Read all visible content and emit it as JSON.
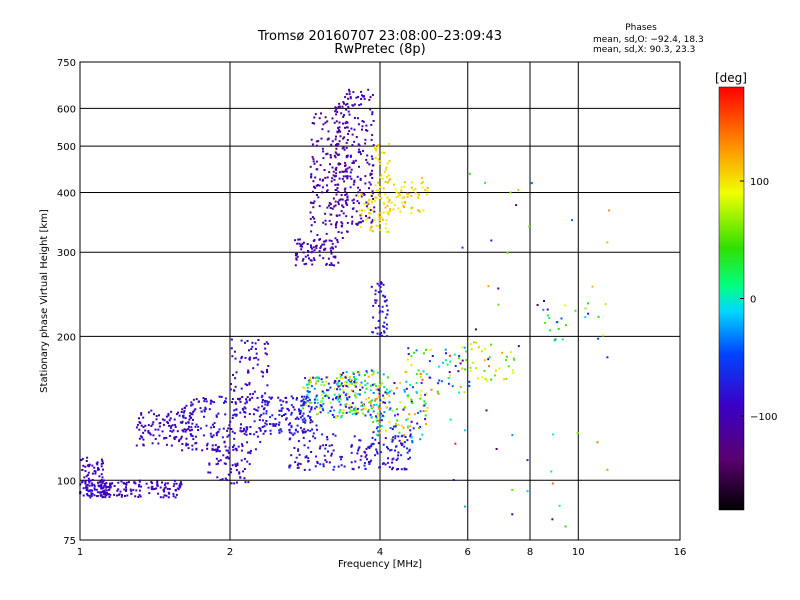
{
  "header": {
    "title_line1": "Tromsø 20160707 23:08:00–23:09:43",
    "title_line2": "RwPretec (8p)",
    "phase_title": "Phases",
    "phase_o": "mean, sd,O: −92.4, 18.3",
    "phase_x": "mean, sd,X:  90.3, 23.3"
  },
  "colorbar": {
    "unit": "[deg]",
    "ticks": [
      "100",
      "0",
      "−100"
    ],
    "min": -180,
    "max": 180,
    "tick_values": [
      100,
      0,
      -100
    ]
  },
  "chart_data": {
    "type": "scatter",
    "xlabel": "Frequency [MHz]",
    "ylabel": "Stationary phase Virtual Height [km]",
    "x_scale": "log",
    "y_scale": "log",
    "xlim": [
      1,
      16
    ],
    "ylim": [
      75,
      750
    ],
    "x_ticks": [
      "1",
      "2",
      "4",
      "6",
      "8",
      "10",
      "16"
    ],
    "x_tick_values": [
      1,
      2,
      4,
      6,
      8,
      10,
      16
    ],
    "y_ticks": [
      "75",
      "100",
      "200",
      "300",
      "400",
      "500",
      "600",
      "750"
    ],
    "y_tick_values": [
      75,
      100,
      200,
      300,
      400,
      500,
      600,
      750
    ],
    "grid": true,
    "clusters": [
      {
        "x": [
          1.0,
          1.15
        ],
        "y": [
          92,
          100
        ],
        "phase": [
          -100,
          -80
        ],
        "n": 80
      },
      {
        "x": [
          1.1,
          1.6
        ],
        "y": [
          92,
          100
        ],
        "phase": [
          -110,
          -85
        ],
        "n": 120
      },
      {
        "x": [
          1.0,
          1.12
        ],
        "y": [
          98,
          112
        ],
        "phase": [
          -110,
          -90
        ],
        "n": 50
      },
      {
        "x": [
          1.3,
          1.7
        ],
        "y": [
          118,
          140
        ],
        "phase": [
          -110,
          -85
        ],
        "n": 110
      },
      {
        "x": [
          1.6,
          2.3
        ],
        "y": [
          115,
          150
        ],
        "phase": [
          -110,
          -70
        ],
        "n": 180
      },
      {
        "x": [
          2.0,
          2.4
        ],
        "y": [
          140,
          198
        ],
        "phase": [
          -110,
          -80
        ],
        "n": 80
      },
      {
        "x": [
          2.3,
          3.0
        ],
        "y": [
          125,
          150
        ],
        "phase": [
          -100,
          -60
        ],
        "n": 150
      },
      {
        "x": [
          2.8,
          3.6
        ],
        "y": [
          135,
          165
        ],
        "phase": [
          -110,
          110
        ],
        "n": 160
      },
      {
        "x": [
          3.3,
          4.2
        ],
        "y": [
          135,
          170
        ],
        "phase": [
          -110,
          130
        ],
        "n": 120
      },
      {
        "x": [
          3.8,
          5.0
        ],
        "y": [
          120,
          160
        ],
        "phase": [
          -110,
          140
        ],
        "n": 120
      },
      {
        "x": [
          1.8,
          2.2
        ],
        "y": [
          98,
          118
        ],
        "phase": [
          -110,
          -80
        ],
        "n": 60
      },
      {
        "x": [
          2.6,
          3.4
        ],
        "y": [
          105,
          125
        ],
        "phase": [
          -110,
          -60
        ],
        "n": 70
      },
      {
        "x": [
          3.5,
          4.6
        ],
        "y": [
          105,
          125
        ],
        "phase": [
          -110,
          -60
        ],
        "n": 100
      },
      {
        "x": [
          4.5,
          6.0
        ],
        "y": [
          150,
          190
        ],
        "phase": [
          -110,
          160
        ],
        "n": 60
      },
      {
        "x": [
          5.8,
          7.5
        ],
        "y": [
          160,
          195
        ],
        "phase": [
          30,
          130
        ],
        "n": 40
      },
      {
        "x": [
          3.85,
          4.15
        ],
        "y": [
          200,
          265
        ],
        "phase": [
          -110,
          -60
        ],
        "n": 50
      },
      {
        "x": [
          2.7,
          3.3
        ],
        "y": [
          280,
          320
        ],
        "phase": [
          -110,
          -90
        ],
        "n": 70
      },
      {
        "x": [
          2.9,
          3.25
        ],
        "y": [
          300,
          600
        ],
        "phase": [
          -130,
          -100
        ],
        "n": 120
      },
      {
        "x": [
          3.25,
          3.45
        ],
        "y": [
          320,
          620
        ],
        "phase": [
          -130,
          -100
        ],
        "n": 130
      },
      {
        "x": [
          3.4,
          3.9
        ],
        "y": [
          340,
          660
        ],
        "phase": [
          -120,
          -90
        ],
        "n": 160
      },
      {
        "x": [
          3.6,
          4.2
        ],
        "y": [
          330,
          400
        ],
        "phase": [
          90,
          120
        ],
        "n": 60
      },
      {
        "x": [
          3.9,
          4.2
        ],
        "y": [
          380,
          510
        ],
        "phase": [
          90,
          115
        ],
        "n": 40
      },
      {
        "x": [
          4.2,
          5.0
        ],
        "y": [
          360,
          430
        ],
        "phase": [
          90,
          120
        ],
        "n": 50
      },
      {
        "x": [
          5.5,
          12.0
        ],
        "y": [
          80,
          500
        ],
        "phase": [
          -150,
          170
        ],
        "n": 50
      },
      {
        "x": [
          8.5,
          11.5
        ],
        "y": [
          195,
          235
        ],
        "phase": [
          -110,
          110
        ],
        "n": 25
      }
    ]
  }
}
